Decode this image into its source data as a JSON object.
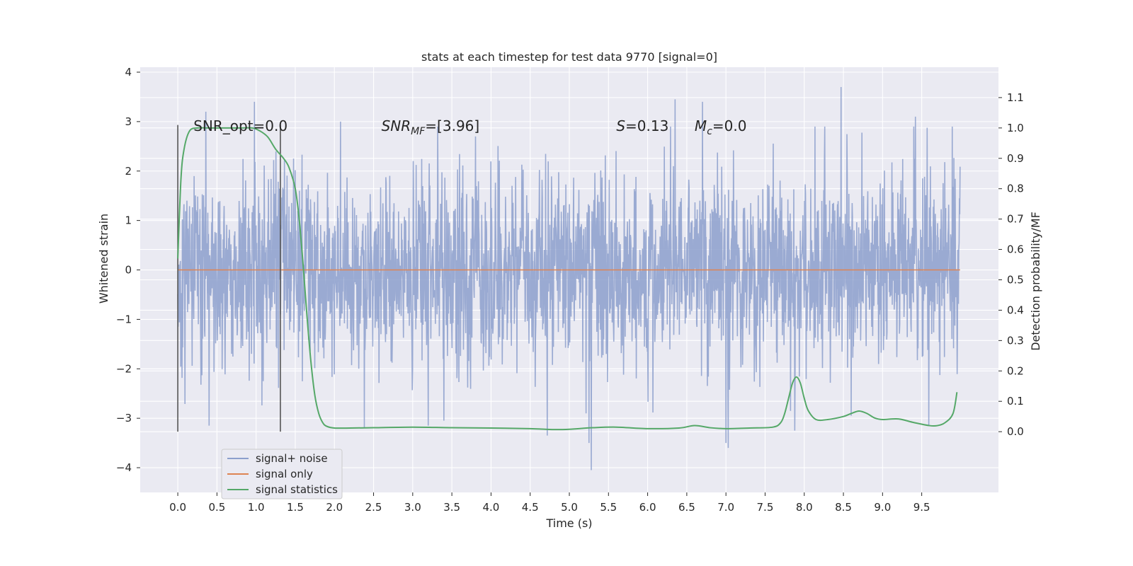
{
  "chart_data": {
    "type": "line",
    "title": "stats at each timestep for test data 9770 [signal=0]",
    "xlabel": "Time (s)",
    "ylabel_left": "Whitened strain",
    "ylabel_right": "Detection probability/MF",
    "xlim": [
      -0.48,
      10.48
    ],
    "ylim_left": [
      -4.5,
      4.1
    ],
    "ylim_right": [
      -0.2,
      1.2
    ],
    "xticks": [
      0.0,
      0.5,
      1.0,
      1.5,
      2.0,
      2.5,
      3.0,
      3.5,
      4.0,
      4.5,
      5.0,
      5.5,
      6.0,
      6.5,
      7.0,
      7.5,
      8.0,
      8.5,
      9.0,
      9.5
    ],
    "yticks_left": [
      -4,
      -3,
      -2,
      -1,
      0,
      1,
      2,
      3,
      4
    ],
    "yticks_right": [
      0.0,
      0.1,
      0.2,
      0.3,
      0.4,
      0.5,
      0.6,
      0.7,
      0.8,
      0.9,
      1.0,
      1.1
    ],
    "grid": true,
    "legend_position": "lower-left",
    "legend": [
      "signal+ noise",
      "signal only",
      "signal statistics"
    ],
    "colors": {
      "noise": "#8c9fcc",
      "signal": "#dd8452",
      "stats": "#55a868",
      "vline": "#555555",
      "plot_bg": "#eaeaf2",
      "grid": "#ffffff"
    },
    "noise_summary": {
      "x_range": [
        0.0,
        9.99
      ],
      "typical_band": [
        -1.6,
        1.6
      ],
      "max": 3.7,
      "min": -4.05,
      "spikes": [
        [
          0.36,
          3.2
        ],
        [
          0.98,
          3.4
        ],
        [
          2.08,
          3.0
        ],
        [
          3.8,
          2.7
        ],
        [
          6.35,
          3.45
        ],
        [
          6.7,
          3.4
        ],
        [
          8.47,
          3.7
        ],
        [
          9.42,
          3.1
        ],
        [
          5.28,
          -4.05
        ],
        [
          5.25,
          -3.5
        ],
        [
          4.72,
          -3.35
        ],
        [
          7.03,
          -3.6
        ],
        [
          7.0,
          -3.5
        ],
        [
          2.38,
          -3.2
        ],
        [
          0.4,
          -3.15
        ],
        [
          9.59,
          -3.15
        ],
        [
          3.2,
          -3.15
        ],
        [
          3.4,
          -3.05
        ],
        [
          7.88,
          -3.25
        ],
        [
          8.6,
          -2.95
        ]
      ]
    },
    "signal_only": {
      "x": [
        0.0,
        9.99
      ],
      "y": [
        0.0,
        0.0
      ]
    },
    "signal_statistics": {
      "x": [
        0.0,
        0.04,
        0.08,
        0.15,
        0.25,
        0.4,
        0.6,
        0.8,
        0.95,
        1.05,
        1.15,
        1.25,
        1.35,
        1.42,
        1.5,
        1.55,
        1.6,
        1.65,
        1.7,
        1.75,
        1.8,
        1.85,
        1.9,
        2.0,
        2.2,
        2.5,
        3.0,
        3.5,
        4.0,
        4.5,
        4.8,
        5.0,
        5.3,
        5.6,
        6.0,
        6.4,
        6.6,
        6.8,
        7.0,
        7.3,
        7.6,
        7.7,
        7.75,
        7.8,
        7.85,
        7.9,
        7.95,
        8.0,
        8.05,
        8.15,
        8.3,
        8.5,
        8.6,
        8.7,
        8.8,
        8.9,
        9.0,
        9.2,
        9.4,
        9.6,
        9.7,
        9.8,
        9.9,
        9.95
      ],
      "y": [
        0.57,
        0.83,
        0.93,
        0.99,
        1.0,
        1.0,
        1.0,
        1.0,
        1.0,
        0.99,
        0.97,
        0.93,
        0.9,
        0.87,
        0.8,
        0.7,
        0.55,
        0.38,
        0.23,
        0.12,
        0.06,
        0.03,
        0.018,
        0.012,
        0.012,
        0.013,
        0.015,
        0.013,
        0.012,
        0.01,
        0.007,
        0.008,
        0.013,
        0.015,
        0.01,
        0.012,
        0.02,
        0.013,
        0.01,
        0.012,
        0.015,
        0.03,
        0.06,
        0.11,
        0.16,
        0.18,
        0.16,
        0.11,
        0.07,
        0.04,
        0.04,
        0.05,
        0.06,
        0.068,
        0.06,
        0.045,
        0.04,
        0.042,
        0.03,
        0.02,
        0.02,
        0.03,
        0.06,
        0.13
      ]
    },
    "vlines": [
      0.0,
      1.31
    ],
    "annotations": {
      "snr_opt": "SNR_opt=0.0",
      "snr_mf_label": "SNR",
      "snr_mf_sub": "MF",
      "snr_mf_value": "=[3.96]",
      "s_label": "S",
      "s_value": "=0.13",
      "mc_label": "M",
      "mc_sub": "c",
      "mc_value": "=0.0"
    }
  }
}
